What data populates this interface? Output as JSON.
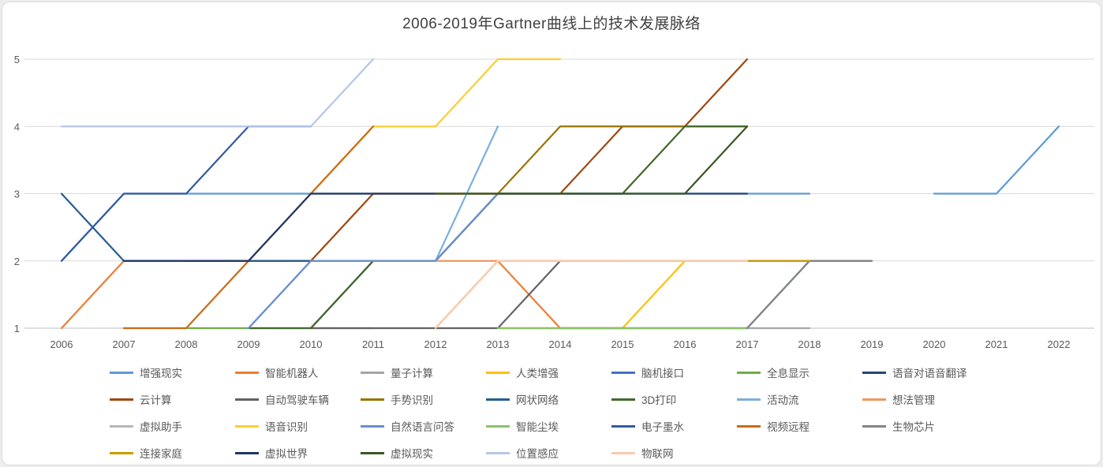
{
  "colors": {
    "grid": "#D9D9D9",
    "axis_line": "#BFBFBF",
    "axis_text": "#595959",
    "title_text": "#404040",
    "card_bg": "#FFFFFF"
  },
  "chart_data": {
    "type": "line",
    "title": "2006-2019年Gartner曲线上的技术发展脉络",
    "xlabel": "",
    "ylabel": "",
    "x": [
      2006,
      2007,
      2008,
      2009,
      2010,
      2011,
      2012,
      2013,
      2014,
      2015,
      2016,
      2017,
      2018,
      2019,
      2020,
      2021,
      2022
    ],
    "yticks": [
      1,
      2,
      3,
      4,
      5
    ],
    "ylim": [
      1,
      5
    ],
    "grid": true,
    "legend_position": "bottom",
    "legend_row_sizes": [
      7,
      7,
      7,
      5
    ],
    "series": [
      {
        "name": "增强现实",
        "color": "#5B9BD5",
        "values": [
          2,
          3,
          3,
          3,
          3,
          3,
          3,
          3,
          3,
          3,
          3,
          3,
          3,
          null,
          3,
          3,
          4
        ]
      },
      {
        "name": "智能机器人",
        "color": "#ED7D31",
        "values": [
          1,
          2,
          null,
          null,
          null,
          null,
          1,
          2,
          1,
          1,
          null,
          null,
          null,
          null,
          null,
          null,
          null
        ]
      },
      {
        "name": "量子计算",
        "color": "#A5A5A5",
        "values": [
          null,
          null,
          null,
          null,
          null,
          null,
          null,
          1,
          1,
          1,
          1,
          1,
          1,
          null,
          null,
          null,
          null
        ]
      },
      {
        "name": "人类增强",
        "color": "#FFC000",
        "values": [
          null,
          null,
          null,
          null,
          null,
          null,
          null,
          1,
          1,
          1,
          2,
          2,
          2,
          null,
          null,
          null,
          null
        ]
      },
      {
        "name": "脑机接口",
        "color": "#4472C4",
        "values": [
          null,
          null,
          null,
          null,
          null,
          null,
          null,
          null,
          1,
          1,
          1,
          1,
          2,
          null,
          null,
          null,
          null
        ]
      },
      {
        "name": "全息显示",
        "color": "#70AD47",
        "values": [
          null,
          null,
          1,
          1,
          1,
          1,
          null,
          null,
          null,
          null,
          null,
          null,
          null,
          null,
          null,
          null,
          null
        ]
      },
      {
        "name": "语音对语音翻译",
        "color": "#264478",
        "values": [
          null,
          null,
          null,
          null,
          1,
          2,
          2,
          3,
          3,
          3,
          3,
          3,
          null,
          null,
          null,
          null,
          null
        ]
      },
      {
        "name": "云计算",
        "color": "#9E480E",
        "values": [
          null,
          null,
          2,
          2,
          2,
          3,
          3,
          3,
          3,
          4,
          4,
          5,
          null,
          null,
          null,
          null,
          null
        ]
      },
      {
        "name": "自动驾驶车辆",
        "color": "#636363",
        "values": [
          null,
          null,
          null,
          null,
          1,
          1,
          1,
          1,
          2,
          2,
          2,
          2,
          2,
          2,
          null,
          null,
          null
        ]
      },
      {
        "name": "手势识别",
        "color": "#997300",
        "values": [
          null,
          null,
          null,
          null,
          null,
          null,
          3,
          3,
          4,
          4,
          4,
          4,
          null,
          null,
          null,
          null,
          null
        ]
      },
      {
        "name": "网状网络",
        "color": "#255E91",
        "values": [
          3,
          2,
          2,
          2,
          2,
          null,
          null,
          null,
          null,
          null,
          null,
          null,
          null,
          null,
          null,
          null,
          null
        ]
      },
      {
        "name": "3D打印",
        "color": "#43682B",
        "values": [
          null,
          null,
          null,
          1,
          1,
          2,
          2,
          3,
          3,
          3,
          4,
          4,
          null,
          null,
          null,
          null,
          null
        ]
      },
      {
        "name": "活动流",
        "color": "#7CAFDD",
        "values": [
          null,
          null,
          null,
          1,
          2,
          2,
          2,
          4,
          null,
          null,
          null,
          null,
          null,
          null,
          null,
          null,
          null
        ]
      },
      {
        "name": "想法管理",
        "color": "#F1975A",
        "values": [
          null,
          null,
          null,
          null,
          2,
          2,
          2,
          2,
          2,
          2,
          null,
          null,
          null,
          null,
          null,
          null,
          null
        ]
      },
      {
        "name": "虚拟助手",
        "color": "#B7B7B7",
        "values": [
          null,
          null,
          null,
          null,
          null,
          null,
          null,
          null,
          null,
          2,
          2,
          2,
          2,
          null,
          null,
          null,
          null
        ]
      },
      {
        "name": "语音识别",
        "color": "#FFCD33",
        "values": [
          null,
          null,
          null,
          null,
          3,
          4,
          4,
          5,
          5,
          null,
          null,
          null,
          null,
          null,
          null,
          null,
          null
        ]
      },
      {
        "name": "自然语言问答",
        "color": "#698ED0",
        "values": [
          null,
          null,
          null,
          1,
          2,
          2,
          2,
          3,
          3,
          3,
          null,
          null,
          null,
          null,
          null,
          null,
          null
        ]
      },
      {
        "name": "智能尘埃",
        "color": "#8CC168",
        "values": [
          null,
          null,
          null,
          null,
          null,
          null,
          null,
          1,
          1,
          1,
          1,
          1,
          null,
          null,
          null,
          null,
          null
        ]
      },
      {
        "name": "电子墨水",
        "color": "#335AA1",
        "values": [
          2,
          3,
          3,
          4,
          4,
          null,
          null,
          null,
          null,
          null,
          null,
          null,
          null,
          null,
          null,
          null,
          null
        ]
      },
      {
        "name": "视频远程",
        "color": "#CB6A15",
        "values": [
          null,
          1,
          1,
          2,
          3,
          4,
          null,
          null,
          null,
          null,
          null,
          null,
          null,
          null,
          null,
          null,
          null
        ]
      },
      {
        "name": "生物芯片",
        "color": "#848484",
        "values": [
          null,
          null,
          null,
          null,
          null,
          null,
          null,
          null,
          null,
          null,
          null,
          1,
          2,
          2,
          null,
          null,
          null
        ]
      },
      {
        "name": "连接家庭",
        "color": "#CC9A00",
        "values": [
          null,
          null,
          null,
          null,
          null,
          null,
          null,
          null,
          null,
          2,
          2,
          2,
          2,
          null,
          null,
          null,
          null
        ]
      },
      {
        "name": "虚拟世界",
        "color": "#1F3864",
        "values": [
          null,
          2,
          2,
          2,
          3,
          3,
          3,
          null,
          null,
          null,
          null,
          null,
          null,
          null,
          null,
          null,
          null
        ]
      },
      {
        "name": "虚拟现实",
        "color": "#385723",
        "values": [
          null,
          null,
          null,
          null,
          null,
          null,
          3,
          3,
          3,
          3,
          3,
          4,
          null,
          null,
          null,
          null,
          null
        ]
      },
      {
        "name": "位置感应",
        "color": "#B4C7E7",
        "values": [
          4,
          4,
          4,
          4,
          4,
          5,
          null,
          null,
          null,
          null,
          null,
          null,
          null,
          null,
          null,
          null,
          null
        ]
      },
      {
        "name": "物联网",
        "color": "#F8CBAD",
        "values": [
          null,
          null,
          null,
          null,
          null,
          null,
          1,
          2,
          2,
          2,
          2,
          2,
          null,
          null,
          null,
          null,
          null
        ]
      }
    ]
  }
}
